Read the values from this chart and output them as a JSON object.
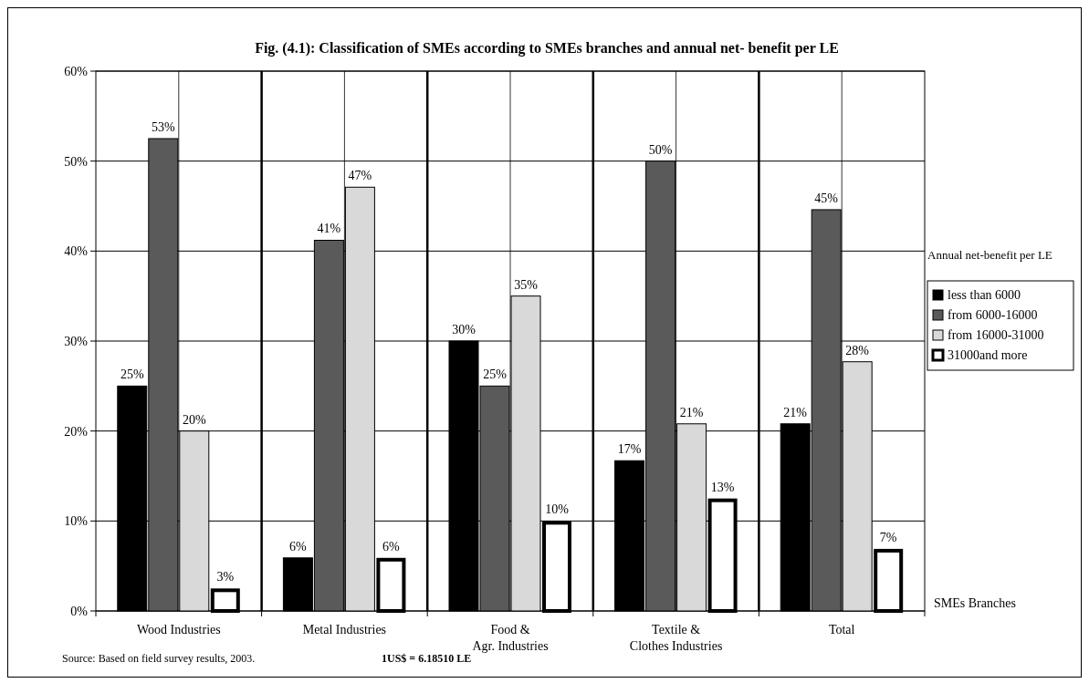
{
  "chart_data": {
    "type": "bar",
    "title": "Fig. (4.1): Classification of SMEs according to SMEs branches and annual net- benefit per LE",
    "categories": [
      "Wood Industries",
      "Metal Industries",
      "Food & Agr. Industries",
      "Textile & Clothes Industries",
      "Total"
    ],
    "series": [
      {
        "name": "less than 6000",
        "color": "#000000",
        "values": [
          25,
          5.9,
          30,
          16.7,
          20.8
        ],
        "value_labels": [
          "25%",
          "6%",
          "30%",
          "17%",
          "21%"
        ]
      },
      {
        "name": "from 6000-16000",
        "color": "#5a5a5a",
        "values": [
          52.5,
          41.2,
          25,
          50,
          44.6
        ],
        "value_labels": [
          "53%",
          "41%",
          "25%",
          "50%",
          "45%"
        ]
      },
      {
        "name": "from 16000-31000",
        "color": "#d9d9d9",
        "values": [
          20,
          47.1,
          35,
          20.8,
          27.7
        ],
        "value_labels": [
          "20%",
          "47%",
          "35%",
          "21%",
          "28%"
        ]
      },
      {
        "name": "31000and more",
        "color": "#ffffff",
        "values": [
          2.5,
          5.9,
          10,
          12.5,
          6.9
        ],
        "value_labels": [
          "3%",
          "6%",
          "10%",
          "13%",
          "7%"
        ]
      }
    ],
    "ylim": [
      0,
      60
    ],
    "yticks": [
      {
        "value": 0,
        "label": "0%"
      },
      {
        "value": 10,
        "label": "10%"
      },
      {
        "value": 20,
        "label": "20%"
      },
      {
        "value": 30,
        "label": "30%"
      },
      {
        "value": 40,
        "label": "40%"
      },
      {
        "value": 50,
        "label": "50%"
      },
      {
        "value": 60,
        "label": "60%"
      }
    ],
    "grid": true,
    "legend": "right",
    "legend_title": "Annual net-benefit per LE",
    "xlabel": "SMEs Branches",
    "annotations": [
      "Source: Based on field survey results,  2003.",
      "1US$ = 6.18510 LE"
    ]
  }
}
